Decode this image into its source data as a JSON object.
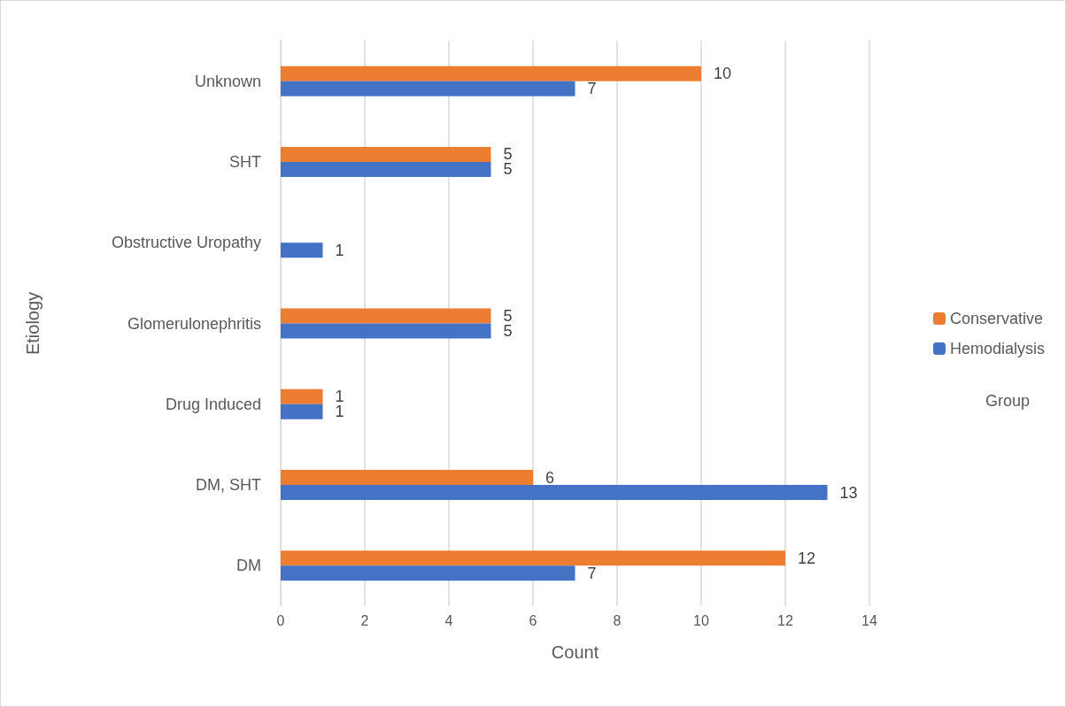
{
  "chart_data": {
    "type": "bar",
    "orientation": "horizontal",
    "xlabel": "Count",
    "ylabel": "Etiology",
    "legend_title": "Group",
    "categories": [
      "Unknown",
      "SHT",
      "Obstructive Uropathy",
      "Glomerulonephritis",
      "Drug Induced",
      "DM, SHT",
      "DM"
    ],
    "series": [
      {
        "name": "Conservative",
        "color": "#ed7d31",
        "values": [
          10,
          5,
          null,
          5,
          1,
          6,
          12
        ]
      },
      {
        "name": "Hemodialysis",
        "color": "#4472c4",
        "values": [
          7,
          5,
          1,
          5,
          1,
          13,
          7
        ]
      }
    ],
    "xlim": [
      0,
      14
    ],
    "xticks": [
      0,
      2,
      4,
      6,
      8,
      10,
      12,
      14
    ],
    "grid": "x",
    "legend": "right",
    "data_labels": true
  }
}
